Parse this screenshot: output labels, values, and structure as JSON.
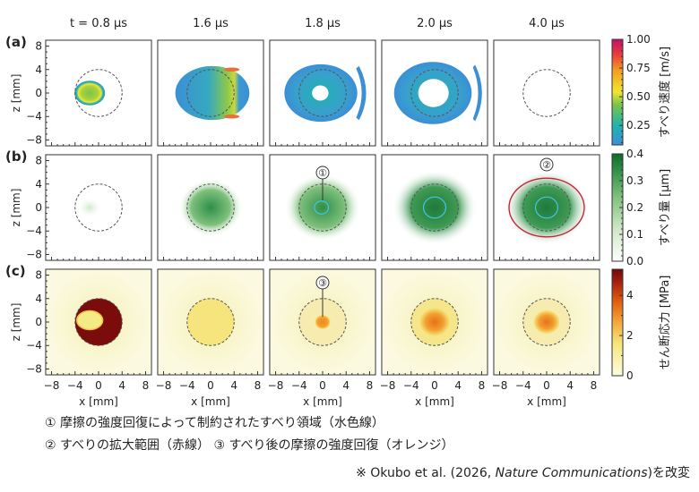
{
  "column_titles": [
    "t = 0.8 μs",
    "1.6 μs",
    "1.8 μs",
    "2.0 μs",
    "4.0 μs"
  ],
  "row_labels": [
    "(a)",
    "(b)",
    "(c)"
  ],
  "axes": {
    "xlabel": "x [mm]",
    "ylabel": "z [mm]",
    "ticks": [
      "−8",
      "−4",
      "0",
      "4",
      "8"
    ],
    "tick_values": [
      -8,
      -4,
      0,
      4,
      8
    ]
  },
  "colorbars": [
    {
      "label": "すべり速度 [m/s]",
      "ticks": [
        "1.00",
        "0.75",
        "0.50",
        "0.25"
      ],
      "tick_values": [
        1.0,
        0.75,
        0.5,
        0.25
      ],
      "range": [
        0.08,
        1.0
      ],
      "colormap": [
        "#3b8fd6",
        "#1fb3b0",
        "#78c44a",
        "#f0e630",
        "#f4a020",
        "#e8403a",
        "#c0106a"
      ]
    },
    {
      "label": "すべり量 [μm]",
      "ticks": [
        "0.4",
        "0.3",
        "0.2",
        "0.1",
        "0.0"
      ],
      "tick_values": [
        0.4,
        0.3,
        0.2,
        0.1,
        0.0
      ],
      "range": [
        0.0,
        0.4
      ],
      "colormap": [
        "#ffffff",
        "#cfe8c8",
        "#7fc07c",
        "#2f8f48",
        "#0f6a2c"
      ]
    },
    {
      "label": "せん断応力 [MPa]",
      "ticks": [
        "4",
        "2",
        "0"
      ],
      "tick_values": [
        4,
        2,
        0
      ],
      "range": [
        0,
        5.3
      ],
      "colormap": [
        "#fdfde0",
        "#f6e67a",
        "#f4a93a",
        "#dd5e10",
        "#a52010",
        "#6e0a0a"
      ]
    }
  ],
  "markers": [
    "①",
    "②",
    "③"
  ],
  "captions": {
    "line1": "① 摩擦の強度回復によって制約されたすべり領域（水色線）",
    "line2": "② すべりの拡大範囲（赤線） ③ すべり後の摩擦の強度回復（オレンジ）",
    "source_prefix": "※  Okubo et al. (2026, ",
    "source_journal": "Nature Communications",
    "source_suffix": ")を改変"
  },
  "chart_data": {
    "type": "heatmap",
    "rows": [
      "(a) すべり速度 [m/s]",
      "(b) すべり量 [μm]",
      "(c) せん断応力 [MPa]"
    ],
    "columns": [
      "t = 0.8 μs",
      "1.6 μs",
      "1.8 μs",
      "2.0 μs",
      "4.0 μs"
    ],
    "xlabel": "x [mm]",
    "ylabel": "z [mm]",
    "xlim": [
      -9,
      9
    ],
    "ylim": [
      -9,
      9
    ],
    "reference_circle_radius_mm": 4,
    "contours": {
      "cyan": "constrained slip region",
      "red": "slip extent",
      "orange": "post-slip strength recovery"
    }
  }
}
